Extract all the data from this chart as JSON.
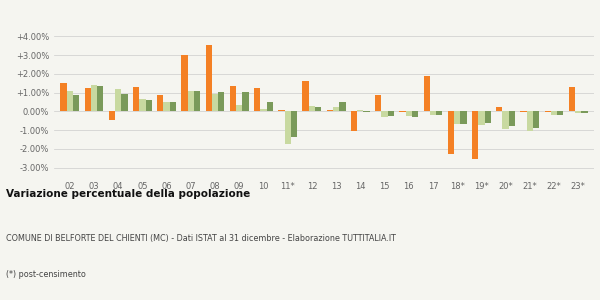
{
  "years": [
    "02",
    "03",
    "04",
    "05",
    "06",
    "07",
    "08",
    "09",
    "10",
    "11*",
    "12",
    "13",
    "14",
    "15",
    "16",
    "17",
    "18*",
    "19*",
    "20*",
    "21*",
    "22*",
    "23*"
  ],
  "belforte": [
    1.5,
    1.25,
    -0.45,
    1.3,
    0.85,
    3.0,
    3.55,
    1.35,
    1.25,
    0.1,
    1.6,
    0.1,
    -1.05,
    0.85,
    -0.05,
    1.9,
    -2.25,
    -2.55,
    0.25,
    -0.05,
    -0.05,
    1.3
  ],
  "provincia": [
    1.1,
    1.4,
    1.2,
    0.65,
    0.5,
    1.1,
    0.95,
    0.35,
    0.15,
    -1.75,
    0.3,
    0.25,
    0.1,
    -0.3,
    -0.25,
    -0.2,
    -0.65,
    -0.7,
    -0.95,
    -1.05,
    -0.2,
    -0.1
  ],
  "marche": [
    0.9,
    1.38,
    0.95,
    0.62,
    0.48,
    1.08,
    1.02,
    1.02,
    0.5,
    -1.35,
    0.22,
    0.5,
    -0.05,
    -0.25,
    -0.28,
    -0.2,
    -0.65,
    -0.6,
    -0.8,
    -0.9,
    -0.2,
    -0.08
  ],
  "color_belforte": "#f48024",
  "color_provincia": "#c8d9a0",
  "color_marche": "#7a9a5a",
  "title_bold": "Variazione percentuale della popolazione",
  "subtitle": "COMUNE DI BELFORTE DEL CHIENTI (MC) - Dati ISTAT al 31 dicembre - Elaborazione TUTTITALIA.IT",
  "footnote": "(*) post-censimento",
  "ylim": [
    -3.5,
    4.5
  ],
  "yticks": [
    -3.0,
    -2.0,
    -1.0,
    0.0,
    1.0,
    2.0,
    3.0,
    4.0
  ],
  "bg_color": "#f5f5f0"
}
